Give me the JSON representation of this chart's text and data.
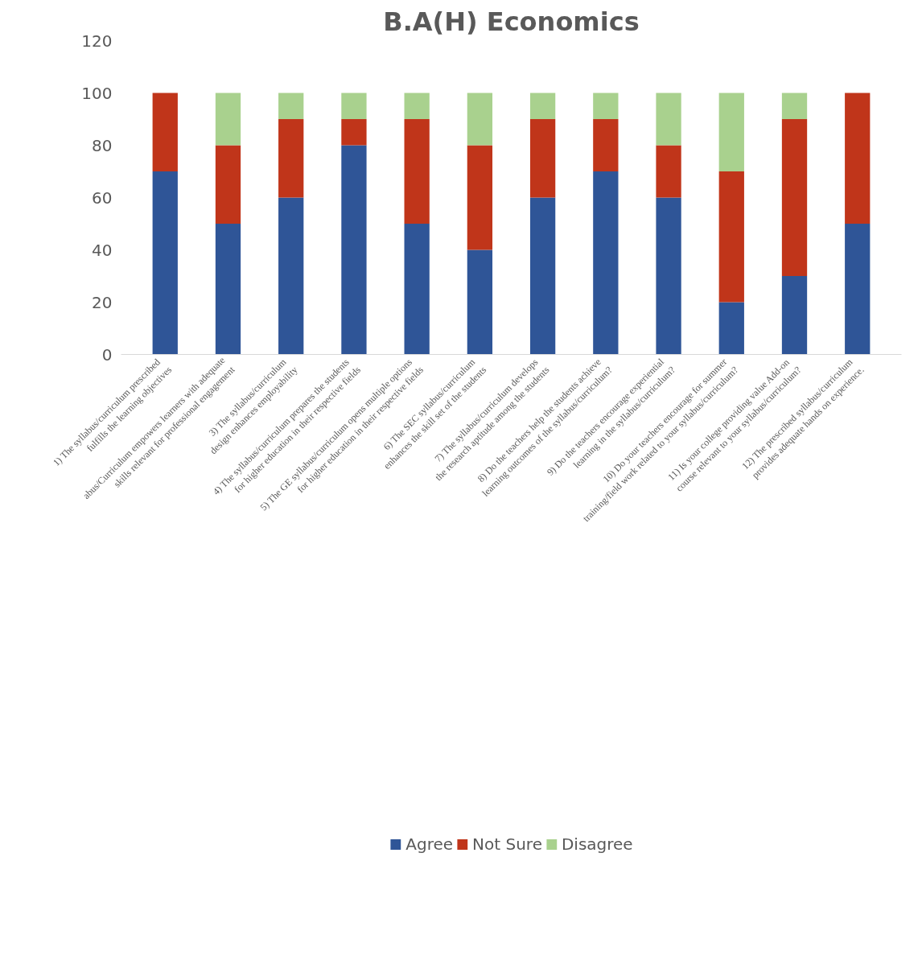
{
  "chart_data": {
    "type": "bar",
    "title": "B.A(H) Economics",
    "stacked": true,
    "categories": [
      "1)  The syllabus/curriculum prescribed fulfills the learning objectives",
      "abus/Curriculum empowers learners with adequate skills relevant for professional engagement",
      "3)  The syllabus/curriculum design enhances employability",
      "4)  The syllabus/curriculum prepares the students for higher education in their respective fields",
      "5)  The GE syllabus/curriculum opens multiple options for higher education in their respective fields",
      "6)  The SEC syllabus/curriculum enhances the skill set of the students",
      "7)  The syllabus/curriculum develops the research aptitude among the students",
      "8)  Do the teachers help the students achieve learning outcomes of the syllabus/curriculum?",
      "9)  Do the teachers encourage experiential learning in the syllabus/curriculum?",
      "10)  Do your teachers encourage for summer training/field work related to your syllabus/curriculum?",
      "11)  Is your college providing value Add-on course relevant to your syllabus/curriculum?",
      "12)  The prescribed syllabus/curriculum provides adequate hands on experience."
    ],
    "series": [
      {
        "name": "Agree",
        "color": "#2f5597",
        "values": [
          70,
          50,
          60,
          80,
          50,
          40,
          60,
          70,
          60,
          20,
          30,
          50
        ]
      },
      {
        "name": "Not Sure",
        "color": "#c0351a",
        "values": [
          30,
          30,
          30,
          10,
          40,
          40,
          30,
          20,
          20,
          50,
          60,
          50
        ]
      },
      {
        "name": "Disagree",
        "color": "#a9d18e",
        "values": [
          0,
          20,
          10,
          10,
          10,
          20,
          10,
          10,
          20,
          30,
          10,
          0
        ]
      }
    ],
    "ylim": [
      0,
      120
    ],
    "yticks": [
      0,
      20,
      40,
      60,
      80,
      100,
      120
    ],
    "grid": false,
    "legend": "bottom"
  }
}
